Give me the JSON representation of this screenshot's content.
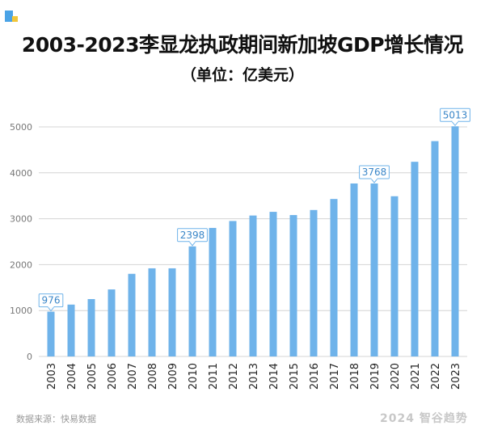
{
  "header": {
    "title": "2003-2023李显龙执政期间新加坡GDP增长情况",
    "subtitle": "（单位：亿美元）"
  },
  "footer": {
    "source": "数据来源：快易数据",
    "watermark": "2024 智谷趋势"
  },
  "colors": {
    "bar": "#6fb3ea",
    "callout_border": "#6fb3ea",
    "callout_text": "#3a86c8",
    "grid": "#d4d4d4",
    "axis_text": "#777777",
    "tick_label": "#222222"
  },
  "chart_data": {
    "type": "bar",
    "title": "2003-2023李显龙执政期间新加坡GDP增长情况",
    "subtitle": "（单位：亿美元）",
    "categories": [
      "2003",
      "2004",
      "2005",
      "2006",
      "2007",
      "2008",
      "2009",
      "2010",
      "2011",
      "2012",
      "2013",
      "2014",
      "2015",
      "2016",
      "2017",
      "2018",
      "2019",
      "2020",
      "2021",
      "2022",
      "2023"
    ],
    "values": [
      976,
      1130,
      1250,
      1460,
      1800,
      1920,
      1920,
      2398,
      2800,
      2950,
      3070,
      3150,
      3080,
      3190,
      3430,
      3768,
      3768,
      3490,
      4240,
      4690,
      5013
    ],
    "yticks": [
      0,
      1000,
      2000,
      3000,
      4000,
      5000
    ],
    "ylim": [
      0,
      5200
    ],
    "grid": true,
    "annotations": [
      {
        "category": "2003",
        "label": "976"
      },
      {
        "category": "2010",
        "label": "2398"
      },
      {
        "category": "2019",
        "label": "3768"
      },
      {
        "category": "2023",
        "label": "5013"
      }
    ]
  }
}
